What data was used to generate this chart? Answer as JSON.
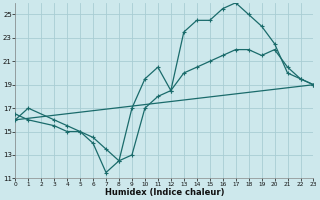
{
  "xlabel": "Humidex (Indice chaleur)",
  "bg_color": "#cde8ec",
  "grid_color": "#a8cdd4",
  "line_color": "#1a6b6b",
  "line1_x": [
    0,
    1,
    3,
    4,
    5,
    6,
    7,
    8,
    9,
    10,
    11,
    12,
    13,
    14,
    15,
    16,
    17,
    18,
    19,
    20,
    21,
    22,
    23
  ],
  "line1_y": [
    16,
    17,
    16,
    15.5,
    15,
    14,
    11.5,
    12.5,
    17,
    19.5,
    20.5,
    18.5,
    23.5,
    24.5,
    24.5,
    25.5,
    26,
    25,
    24,
    22.5,
    20,
    19.5,
    19
  ],
  "line2_x": [
    0,
    1,
    3,
    4,
    5,
    6,
    7,
    8,
    9,
    10,
    11,
    12,
    13,
    14,
    15,
    16,
    17,
    18,
    19,
    20,
    21,
    22,
    23
  ],
  "line2_y": [
    16.5,
    16,
    15.5,
    15,
    15,
    14.5,
    13.5,
    12.5,
    13,
    17,
    18,
    18.5,
    20,
    20.5,
    21,
    21.5,
    22,
    22,
    21.5,
    22,
    20.5,
    19.5,
    19
  ],
  "line3_x": [
    0,
    23
  ],
  "line3_y": [
    16,
    19
  ],
  "xlim": [
    0,
    23
  ],
  "ylim": [
    11,
    26
  ],
  "yticks": [
    11,
    13,
    15,
    17,
    19,
    21,
    23,
    25
  ],
  "xticks": [
    0,
    1,
    2,
    3,
    4,
    5,
    6,
    7,
    8,
    9,
    10,
    11,
    12,
    13,
    14,
    15,
    16,
    17,
    18,
    19,
    20,
    21,
    22,
    23
  ]
}
